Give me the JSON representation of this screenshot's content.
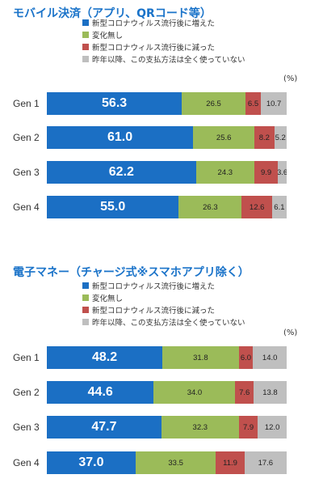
{
  "unit": "(%)",
  "legend": [
    {
      "label": "新型コロナウィルス流行後に増えた",
      "color": "#1b6fc4"
    },
    {
      "label": "変化無し",
      "color": "#9bbb59"
    },
    {
      "label": "新型コロナウィルス流行後に減った",
      "color": "#c0504d"
    },
    {
      "label": "昨年以降、この支払方法は全く使っていない",
      "color": "#bfbfbf"
    }
  ],
  "chart_data": [
    {
      "type": "bar",
      "orientation": "horizontal",
      "stacked": true,
      "title": "モバイル決済（アプリ、QRコード等）",
      "categories": [
        "Gen 1",
        "Gen 2",
        "Gen 3",
        "Gen 4"
      ],
      "series": [
        {
          "name": "新型コロナウィルス流行後に増えた",
          "values": [
            56.3,
            61.0,
            62.2,
            55.0
          ]
        },
        {
          "name": "変化無し",
          "values": [
            26.5,
            25.6,
            24.3,
            26.3
          ]
        },
        {
          "name": "新型コロナウィルス流行後に減った",
          "values": [
            6.5,
            8.2,
            9.9,
            12.6
          ]
        },
        {
          "name": "昨年以降、この支払方法は全く使っていない",
          "values": [
            10.7,
            5.2,
            3.6,
            6.1
          ]
        }
      ],
      "unit": "(%)",
      "legend_position": "top"
    },
    {
      "type": "bar",
      "orientation": "horizontal",
      "stacked": true,
      "title": "電子マネー（チャージ式※スマホアプリ除く）",
      "categories": [
        "Gen 1",
        "Gen 2",
        "Gen 3",
        "Gen 4"
      ],
      "series": [
        {
          "name": "新型コロナウィルス流行後に増えた",
          "values": [
            48.2,
            44.6,
            47.7,
            37.0
          ]
        },
        {
          "name": "変化無し",
          "values": [
            31.8,
            34.0,
            32.3,
            33.5
          ]
        },
        {
          "name": "新型コロナウィルス流行後に減った",
          "values": [
            6.0,
            7.6,
            7.9,
            11.9
          ]
        },
        {
          "name": "昨年以降、この支払方法は全く使っていない",
          "values": [
            14.0,
            13.8,
            12.0,
            17.6
          ]
        }
      ],
      "unit": "(%)",
      "legend_position": "top"
    }
  ]
}
